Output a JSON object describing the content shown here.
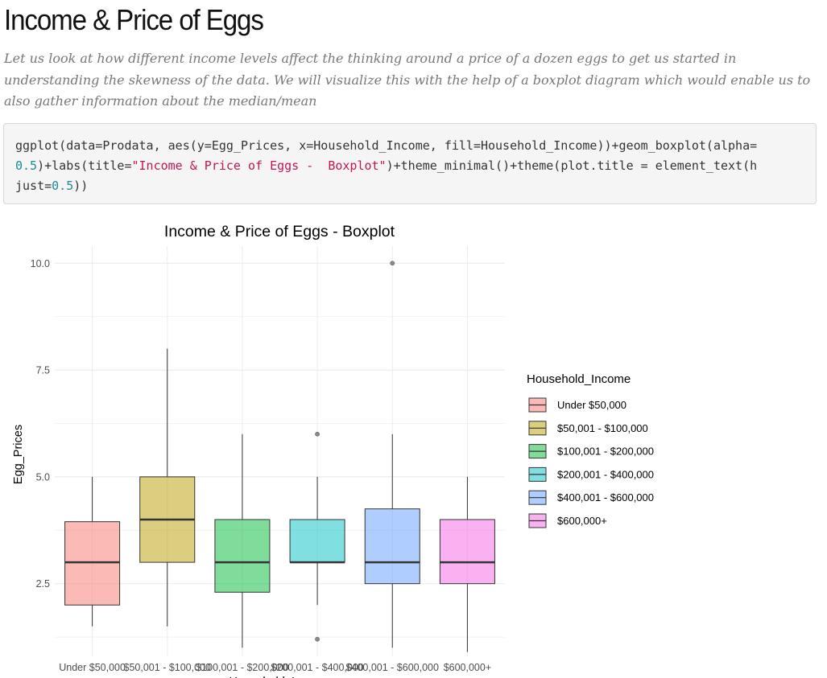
{
  "page": {
    "title": "Income & Price of Eggs",
    "intro": "Let us look at how different income levels affect the thinking around a price of a dozen eggs to get us started in understanding the skewness of the data. We will visualize this with the help of a boxplot diagram which would enable us to also gather information about the median/mean"
  },
  "code": {
    "line1a": "ggplot(data=Prodata, aes(y=Egg_Prices, x=Household_Income, fill=Household_Income))+geom_boxplot(alpha=",
    "line2_num": "0.5",
    "line2_mid": ")+labs(title=",
    "line2_str": "\"Income & Price of Eggs -  Boxplot\"",
    "line2_end": ")+theme_minimal()+theme(plot.title = element_text(h",
    "line3a": "just=",
    "line3_num": "0.5",
    "line3_end": "))"
  },
  "chart_data": {
    "type": "boxplot",
    "title": "Income & Price of Eggs -  Boxplot",
    "ylabel": "Egg_Prices",
    "xlabel": "Household_Income",
    "ylim": [
      0.8,
      10.4
    ],
    "yticks": [
      2.5,
      5.0,
      7.5,
      10.0
    ],
    "ytick_labels": [
      "2.5",
      "5.0",
      "7.5",
      "10.0"
    ],
    "grid": true,
    "legend": {
      "title": "Household_Income",
      "placement": "right"
    },
    "categories": [
      "Under $50,000",
      "$50,001 - $100,000",
      "$100,001 - $200,000",
      "$200,001 - $400,000",
      "$400,001 - $600,000",
      "$600,000+"
    ],
    "colors": [
      "#F8766D",
      "#B79F00",
      "#00BA38",
      "#00BFC4",
      "#619CFF",
      "#F564E3"
    ],
    "boxes": [
      {
        "category": "Under $50,000",
        "min": 1.5,
        "q1": 2.0,
        "median": 3.0,
        "q3": 3.95,
        "max": 5.0,
        "outliers": []
      },
      {
        "category": "$50,001 - $100,000",
        "min": 1.5,
        "q1": 3.0,
        "median": 4.0,
        "q3": 5.0,
        "max": 8.0,
        "outliers": []
      },
      {
        "category": "$100,001 - $200,000",
        "min": 1.0,
        "q1": 2.3,
        "median": 3.0,
        "q3": 4.0,
        "max": 6.0,
        "outliers": []
      },
      {
        "category": "$200,001 - $400,000",
        "min": 2.0,
        "q1": 3.0,
        "median": 3.0,
        "q3": 4.0,
        "max": 5.0,
        "outliers": [
          1.2,
          6.0
        ]
      },
      {
        "category": "$400,001 - $600,000",
        "min": 1.0,
        "q1": 2.5,
        "median": 3.0,
        "q3": 4.25,
        "max": 6.0,
        "outliers": [
          10.0
        ]
      },
      {
        "category": "$600,000+",
        "min": 0.9,
        "q1": 2.5,
        "median": 3.0,
        "q3": 4.0,
        "max": 5.0,
        "outliers": []
      }
    ]
  }
}
